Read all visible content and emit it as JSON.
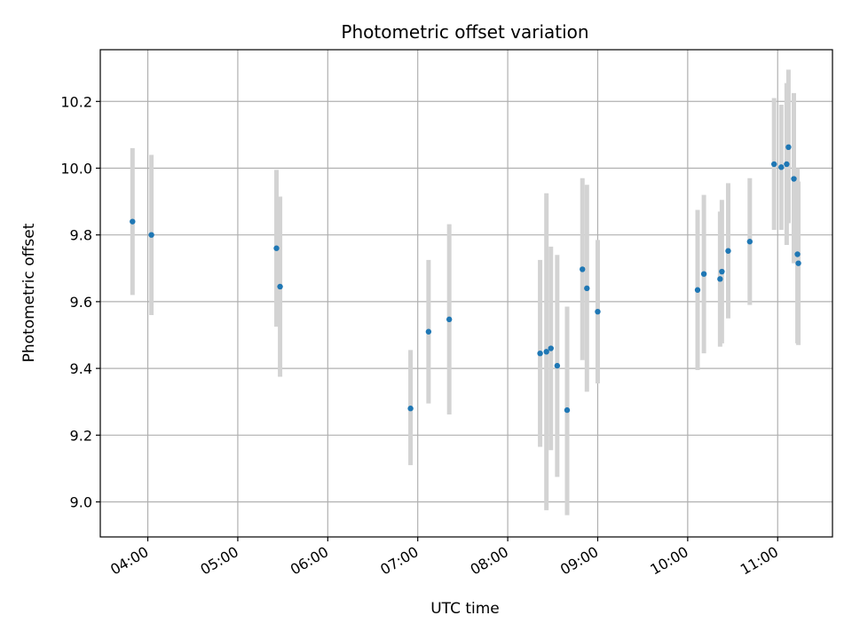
{
  "chart_data": {
    "type": "scatter",
    "title": "Photometric offset variation",
    "xlabel": "UTC time",
    "ylabel": "Photometric offset",
    "x_axis": "time (hours UTC)",
    "xlim": [
      3.472,
      11.609
    ],
    "ylim": [
      8.895,
      10.355
    ],
    "x_ticks": [
      {
        "value": 4,
        "label": "04:00"
      },
      {
        "value": 5,
        "label": "05:00"
      },
      {
        "value": 6,
        "label": "06:00"
      },
      {
        "value": 7,
        "label": "07:00"
      },
      {
        "value": 8,
        "label": "08:00"
      },
      {
        "value": 9,
        "label": "09:00"
      },
      {
        "value": 10,
        "label": "10:00"
      },
      {
        "value": 11,
        "label": "11:00"
      }
    ],
    "y_ticks": [
      {
        "value": 9.0,
        "label": "9.0"
      },
      {
        "value": 9.2,
        "label": "9.2"
      },
      {
        "value": 9.4,
        "label": "9.4"
      },
      {
        "value": 9.6,
        "label": "9.6"
      },
      {
        "value": 9.8,
        "label": "9.8"
      },
      {
        "value": 10.0,
        "label": "10.0"
      },
      {
        "value": 10.2,
        "label": "10.2"
      }
    ],
    "grid": true,
    "colors": {
      "marker": "#1f77b4",
      "errorbar": "#d3d3d3",
      "grid": "#b0b0b0"
    },
    "points": [
      {
        "x": 3.83,
        "y": 9.84,
        "lo": 9.62,
        "hi": 10.06
      },
      {
        "x": 4.04,
        "y": 9.8,
        "lo": 9.56,
        "hi": 10.04
      },
      {
        "x": 5.43,
        "y": 9.76,
        "lo": 9.525,
        "hi": 9.995
      },
      {
        "x": 5.47,
        "y": 9.645,
        "lo": 9.375,
        "hi": 9.915
      },
      {
        "x": 6.92,
        "y": 9.28,
        "lo": 9.11,
        "hi": 9.455
      },
      {
        "x": 7.12,
        "y": 9.51,
        "lo": 9.295,
        "hi": 9.725
      },
      {
        "x": 7.35,
        "y": 9.547,
        "lo": 9.262,
        "hi": 9.832
      },
      {
        "x": 8.36,
        "y": 9.445,
        "lo": 9.165,
        "hi": 9.725
      },
      {
        "x": 8.43,
        "y": 9.45,
        "lo": 8.975,
        "hi": 9.925
      },
      {
        "x": 8.48,
        "y": 9.46,
        "lo": 9.155,
        "hi": 9.765
      },
      {
        "x": 8.55,
        "y": 9.408,
        "lo": 9.075,
        "hi": 9.74
      },
      {
        "x": 8.66,
        "y": 9.275,
        "lo": 8.96,
        "hi": 9.585
      },
      {
        "x": 8.83,
        "y": 9.697,
        "lo": 9.425,
        "hi": 9.97
      },
      {
        "x": 8.88,
        "y": 9.64,
        "lo": 9.33,
        "hi": 9.95
      },
      {
        "x": 9.0,
        "y": 9.57,
        "lo": 9.355,
        "hi": 9.785
      },
      {
        "x": 10.11,
        "y": 9.635,
        "lo": 9.395,
        "hi": 9.875
      },
      {
        "x": 10.18,
        "y": 9.683,
        "lo": 9.445,
        "hi": 9.92
      },
      {
        "x": 10.36,
        "y": 9.668,
        "lo": 9.465,
        "hi": 9.87
      },
      {
        "x": 10.38,
        "y": 9.69,
        "lo": 9.475,
        "hi": 9.905
      },
      {
        "x": 10.45,
        "y": 9.752,
        "lo": 9.55,
        "hi": 9.955
      },
      {
        "x": 10.69,
        "y": 9.78,
        "lo": 9.59,
        "hi": 9.97
      },
      {
        "x": 10.96,
        "y": 10.012,
        "lo": 9.815,
        "hi": 10.21
      },
      {
        "x": 11.04,
        "y": 10.003,
        "lo": 9.815,
        "hi": 10.19
      },
      {
        "x": 11.1,
        "y": 10.012,
        "lo": 9.77,
        "hi": 10.255
      },
      {
        "x": 11.12,
        "y": 10.063,
        "lo": 9.835,
        "hi": 10.295
      },
      {
        "x": 11.18,
        "y": 9.968,
        "lo": 9.715,
        "hi": 10.225
      },
      {
        "x": 11.22,
        "y": 9.742,
        "lo": 9.475,
        "hi": 10.0
      },
      {
        "x": 11.23,
        "y": 9.715,
        "lo": 9.47,
        "hi": 9.96
      }
    ]
  }
}
